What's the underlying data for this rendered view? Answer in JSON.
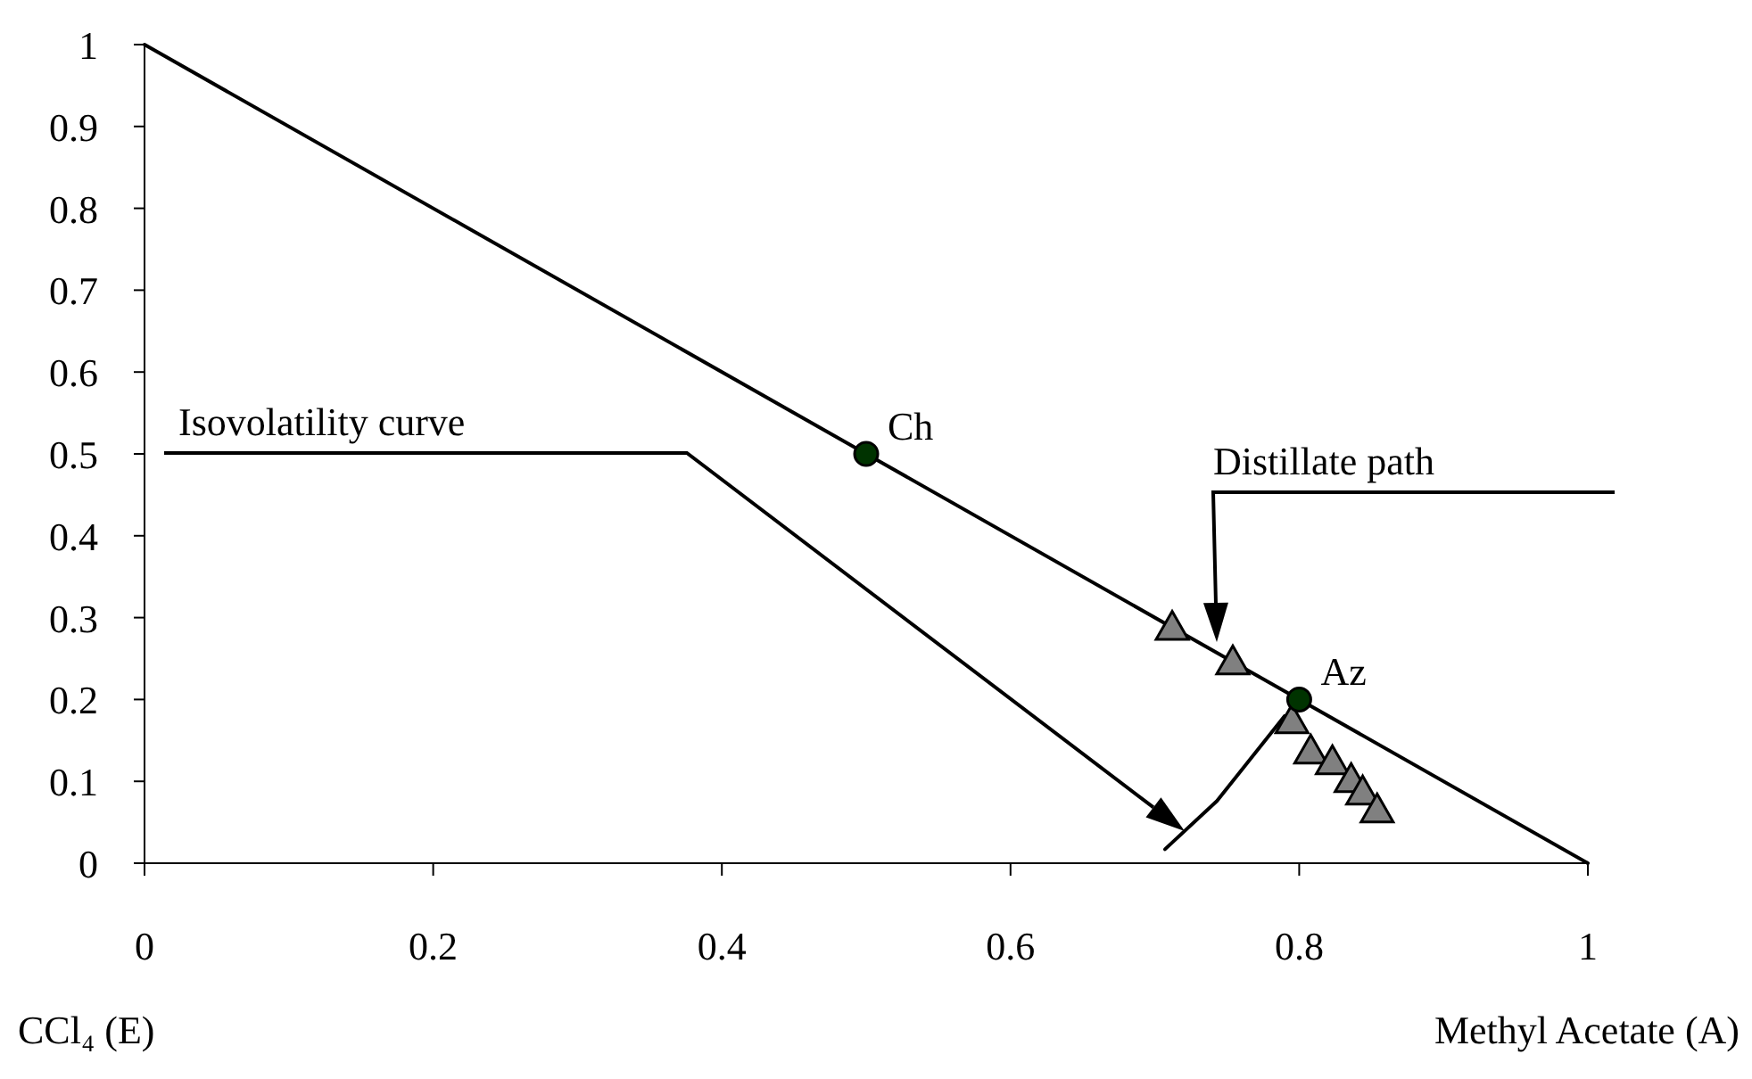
{
  "chart_data": {
    "type": "line",
    "xlabel": "Methyl Acetate (A)",
    "xlim": [
      0,
      1
    ],
    "xticks": [
      0,
      0.2,
      0.4,
      0.6,
      0.8,
      1
    ],
    "ylim": [
      0,
      1
    ],
    "yticks": [
      0,
      0.1,
      0.2,
      0.3,
      0.4,
      0.5,
      0.6,
      0.7,
      0.8,
      0.9,
      1
    ],
    "grid": false,
    "series": [
      {
        "color": "#000000",
        "marker": "none",
        "line_style": "solid",
        "x": [
          0,
          1
        ],
        "values": [
          1,
          0
        ]
      },
      {
        "color": "#000000",
        "marker": "none",
        "line_style": "solid",
        "x": [
          0.707,
          0.743,
          0.79
        ],
        "values": [
          0.017,
          0.076,
          0.18
        ]
      },
      {
        "type": "scatter",
        "color": "#808080",
        "marker": "triangle",
        "x": [
          0.712,
          0.754,
          0.795,
          0.808,
          0.823,
          0.836,
          0.844,
          0.854
        ],
        "values": [
          0.288,
          0.246,
          0.174,
          0.137,
          0.124,
          0.102,
          0.087,
          0.065
        ]
      },
      {
        "type": "scatter",
        "color": "#003300",
        "marker": "circle",
        "x": [
          0.5,
          0.8
        ],
        "values": [
          0.5,
          0.2
        ]
      }
    ],
    "annotations": [
      {
        "text": "Ch",
        "x": 0.5,
        "y": 0.5
      },
      {
        "text": "Az",
        "x": 0.8,
        "y": 0.2
      },
      "Isovolatility curve",
      "Distillate path",
      "CCl₄ (E)"
    ]
  }
}
